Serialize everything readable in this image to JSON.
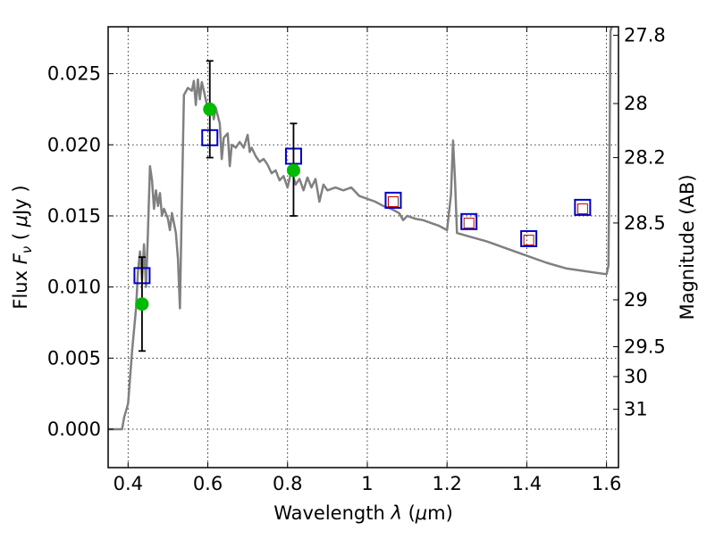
{
  "chart_data": {
    "type": "scatter",
    "xlabel": "Wavelength  λ (μm)",
    "ylabel": "Flux  F_ν  ( μJy )",
    "y2label": "Magnitude (AB)",
    "xlim": [
      0.35,
      1.63
    ],
    "ylim": [
      -0.0027,
      0.0283
    ],
    "grid": true,
    "x_ticks": [
      0.4,
      0.6,
      0.8,
      1.0,
      1.2,
      1.4,
      1.6
    ],
    "x_tick_labels": [
      "0.4",
      "0.6",
      "0.8",
      "1",
      "1.2",
      "1.4",
      "1.6"
    ],
    "y_ticks": [
      0.0,
      0.005,
      0.01,
      0.015,
      0.02,
      0.025
    ],
    "y_tick_labels": [
      "0.000",
      "0.005",
      "0.010",
      "0.015",
      "0.020",
      "0.025"
    ],
    "y2_ticks": [
      {
        "label": "27.8",
        "flux": 0.0277
      },
      {
        "label": "28",
        "flux": 0.0229
      },
      {
        "label": "28.2",
        "flux": 0.0191
      },
      {
        "label": "28.5",
        "flux": 0.0145
      },
      {
        "label": "29",
        "flux": 0.0091
      },
      {
        "label": "29.5",
        "flux": 0.0058
      },
      {
        "label": "30",
        "flux": 0.0037
      },
      {
        "label": "31",
        "flux": 0.0014
      }
    ],
    "series": [
      {
        "type": "line",
        "color": "#808080",
        "points": [
          [
            0.35,
            0.0
          ],
          [
            0.385,
            0.0
          ],
          [
            0.39,
            0.0008
          ],
          [
            0.4,
            0.0018
          ],
          [
            0.41,
            0.0055
          ],
          [
            0.42,
            0.0085
          ],
          [
            0.425,
            0.0112
          ],
          [
            0.43,
            0.0125
          ],
          [
            0.435,
            0.0105
          ],
          [
            0.44,
            0.013
          ],
          [
            0.445,
            0.01
          ],
          [
            0.45,
            0.014
          ],
          [
            0.455,
            0.0185
          ],
          [
            0.46,
            0.0175
          ],
          [
            0.465,
            0.0155
          ],
          [
            0.47,
            0.0168
          ],
          [
            0.475,
            0.0157
          ],
          [
            0.48,
            0.0166
          ],
          [
            0.485,
            0.015
          ],
          [
            0.49,
            0.0155
          ],
          [
            0.5,
            0.0148
          ],
          [
            0.505,
            0.014
          ],
          [
            0.51,
            0.0152
          ],
          [
            0.515,
            0.0145
          ],
          [
            0.52,
            0.0138
          ],
          [
            0.525,
            0.012
          ],
          [
            0.53,
            0.0085
          ],
          [
            0.535,
            0.016
          ],
          [
            0.54,
            0.0235
          ],
          [
            0.55,
            0.024
          ],
          [
            0.56,
            0.0238
          ],
          [
            0.565,
            0.0245
          ],
          [
            0.57,
            0.0228
          ],
          [
            0.575,
            0.0246
          ],
          [
            0.58,
            0.0232
          ],
          [
            0.585,
            0.0244
          ],
          [
            0.59,
            0.0238
          ],
          [
            0.6,
            0.0225
          ],
          [
            0.605,
            0.0222
          ],
          [
            0.61,
            0.0228
          ],
          [
            0.615,
            0.0218
          ],
          [
            0.62,
            0.0226
          ],
          [
            0.63,
            0.0215
          ],
          [
            0.635,
            0.019
          ],
          [
            0.64,
            0.0205
          ],
          [
            0.65,
            0.0208
          ],
          [
            0.655,
            0.0185
          ],
          [
            0.66,
            0.02
          ],
          [
            0.67,
            0.0198
          ],
          [
            0.68,
            0.0202
          ],
          [
            0.69,
            0.0198
          ],
          [
            0.7,
            0.0207
          ],
          [
            0.705,
            0.0195
          ],
          [
            0.71,
            0.0198
          ],
          [
            0.72,
            0.0192
          ],
          [
            0.73,
            0.0188
          ],
          [
            0.74,
            0.019
          ],
          [
            0.75,
            0.0186
          ],
          [
            0.76,
            0.018
          ],
          [
            0.77,
            0.0182
          ],
          [
            0.78,
            0.0175
          ],
          [
            0.79,
            0.0178
          ],
          [
            0.8,
            0.017
          ],
          [
            0.81,
            0.0182
          ],
          [
            0.82,
            0.0172
          ],
          [
            0.83,
            0.0176
          ],
          [
            0.84,
            0.0168
          ],
          [
            0.85,
            0.0177
          ],
          [
            0.86,
            0.017
          ],
          [
            0.87,
            0.0176
          ],
          [
            0.88,
            0.016
          ],
          [
            0.89,
            0.0172
          ],
          [
            0.9,
            0.0168
          ],
          [
            0.92,
            0.017
          ],
          [
            0.94,
            0.0168
          ],
          [
            0.96,
            0.017
          ],
          [
            0.98,
            0.0164
          ],
          [
            1.0,
            0.0162
          ],
          [
            1.02,
            0.016
          ],
          [
            1.04,
            0.0157
          ],
          [
            1.06,
            0.0155
          ],
          [
            1.08,
            0.0152
          ],
          [
            1.09,
            0.0147
          ],
          [
            1.1,
            0.015
          ],
          [
            1.12,
            0.0148
          ],
          [
            1.14,
            0.0147
          ],
          [
            1.16,
            0.0145
          ],
          [
            1.18,
            0.0143
          ],
          [
            1.2,
            0.014
          ],
          [
            1.21,
            0.0165
          ],
          [
            1.215,
            0.0203
          ],
          [
            1.22,
            0.0175
          ],
          [
            1.225,
            0.0138
          ],
          [
            1.25,
            0.0136
          ],
          [
            1.3,
            0.0132
          ],
          [
            1.35,
            0.0127
          ],
          [
            1.4,
            0.0122
          ],
          [
            1.45,
            0.0117
          ],
          [
            1.5,
            0.0113
          ],
          [
            1.55,
            0.0111
          ],
          [
            1.6,
            0.0109
          ],
          [
            1.605,
            0.0115
          ],
          [
            1.61,
            0.028
          ],
          [
            1.63,
            0.03
          ]
        ]
      },
      {
        "type": "square-marker",
        "color": "#0000cc",
        "points": [
          [
            0.435,
            0.0108
          ],
          [
            0.605,
            0.0205
          ],
          [
            0.815,
            0.0192
          ],
          [
            1.065,
            0.0161
          ],
          [
            1.255,
            0.0146
          ],
          [
            1.405,
            0.0134
          ],
          [
            1.54,
            0.0156
          ]
        ]
      },
      {
        "type": "square-marker-small",
        "color": "#cc0000",
        "points": [
          [
            1.065,
            0.016
          ],
          [
            1.255,
            0.0145
          ],
          [
            1.405,
            0.0133
          ],
          [
            1.54,
            0.0155
          ]
        ]
      },
      {
        "type": "circle-errorbar",
        "color": "#00bb00",
        "points": [
          {
            "x": 0.435,
            "y": 0.0088,
            "ylo": 0.0055,
            "yhi": 0.0121
          },
          {
            "x": 0.605,
            "y": 0.0225,
            "ylo": 0.0191,
            "yhi": 0.0259
          },
          {
            "x": 0.815,
            "y": 0.0182,
            "ylo": 0.015,
            "yhi": 0.0215
          }
        ]
      }
    ]
  }
}
